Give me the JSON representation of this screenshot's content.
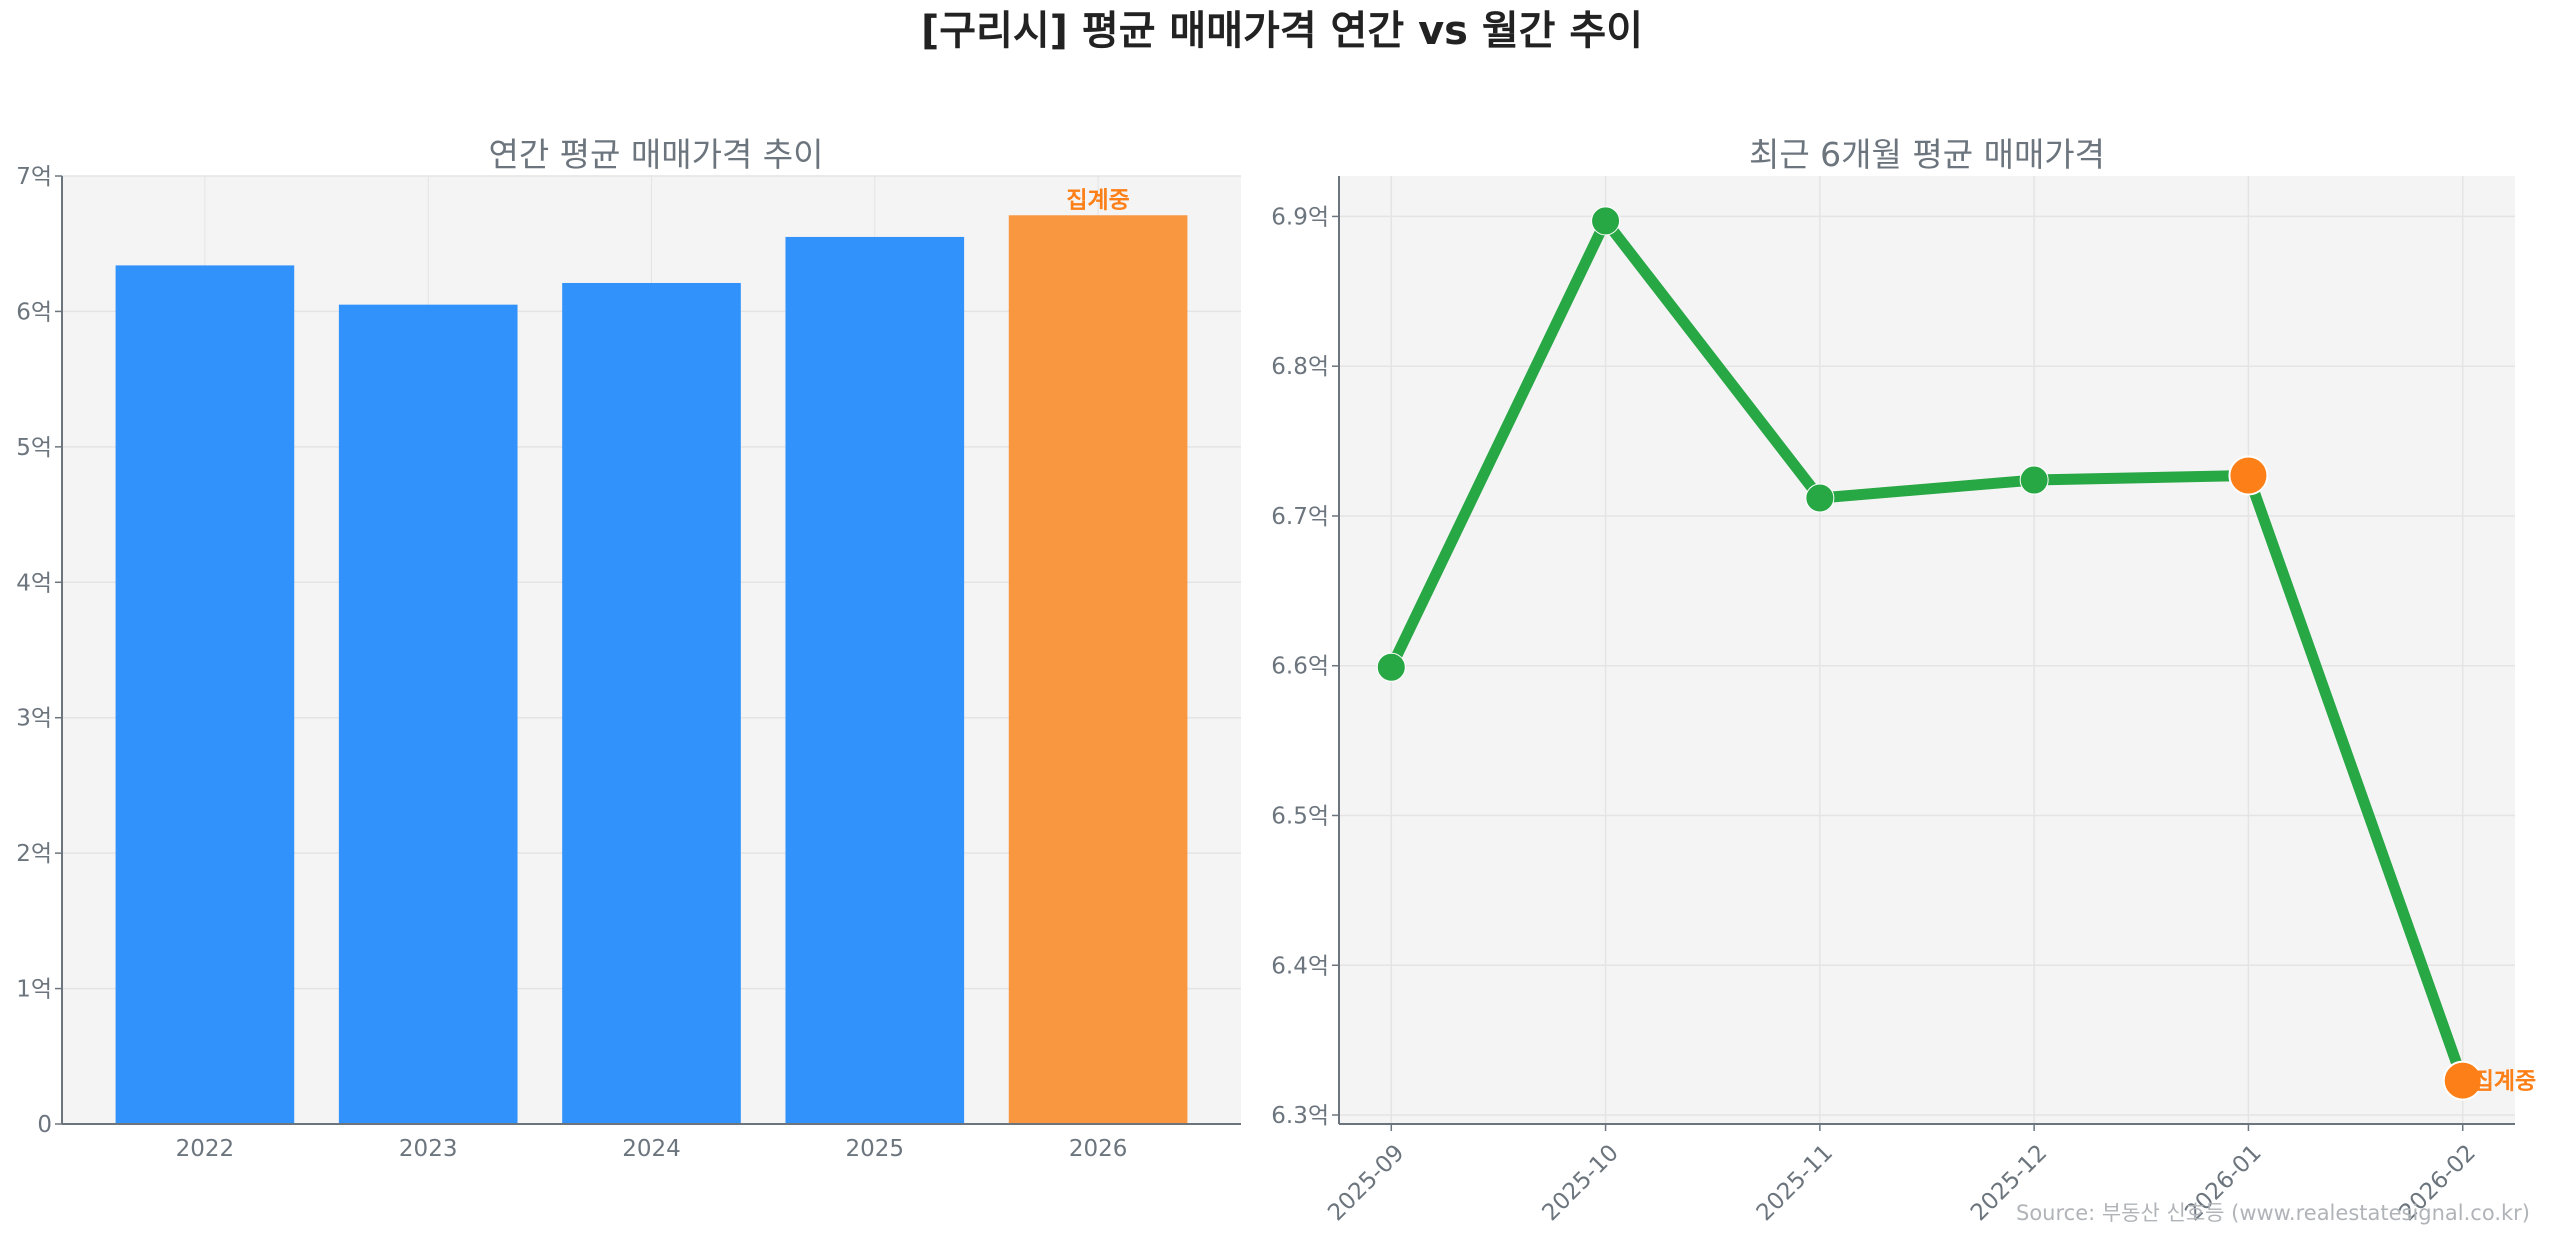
{
  "title": "[구리시] 평균 매매가격 연간 vs 월간 추이",
  "source": "Source: 부동산 신호등 (www.realestatesignal.co.kr)",
  "colors": {
    "bar": "#3192FC",
    "bar_partial": "#F89740",
    "line": "#28A745",
    "marker_partial": "#FD7F17",
    "text": "#6c757d",
    "plot_bg": "#F4F4F4"
  },
  "chart_data": [
    {
      "type": "bar",
      "title": "연간 평균 매매가격 추이",
      "categories": [
        "2022",
        "2023",
        "2024",
        "2025",
        "2026"
      ],
      "values": [
        6.34,
        6.05,
        6.21,
        6.55,
        6.71
      ],
      "value_unit": "억",
      "ylim": [
        0,
        7
      ],
      "yticks": [
        0,
        1,
        2,
        3,
        4,
        5,
        6,
        7
      ],
      "ytick_labels": [
        "0",
        "1억",
        "2억",
        "3억",
        "4억",
        "5억",
        "6억",
        "7억"
      ],
      "grid": true,
      "partial_index": 4,
      "annotation": "집계중"
    },
    {
      "type": "line",
      "title": "최근 6개월 평균 매매가격",
      "categories": [
        "2025-09",
        "2025-10",
        "2025-11",
        "2025-12",
        "2026-01",
        "2026-02"
      ],
      "values": [
        6.599,
        6.897,
        6.712,
        6.724,
        6.727,
        6.323
      ],
      "value_unit": "억",
      "ylim": [
        6.294,
        6.927
      ],
      "yticks": [
        6.3,
        6.4,
        6.5,
        6.6,
        6.7,
        6.8,
        6.9
      ],
      "ytick_labels": [
        "6.3억",
        "6.4억",
        "6.5억",
        "6.6억",
        "6.7억",
        "6.8억",
        "6.9억"
      ],
      "grid": true,
      "highlight_indices": [
        4,
        5
      ],
      "annotation": "집계중"
    }
  ]
}
